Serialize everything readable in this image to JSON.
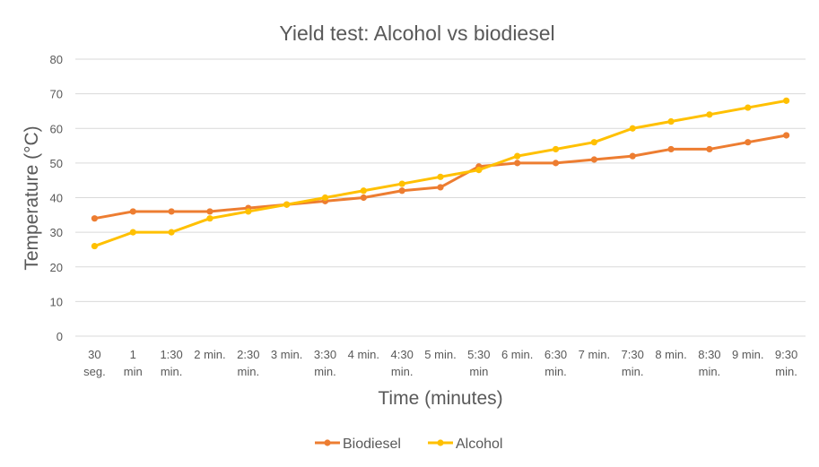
{
  "chart_data": {
    "type": "line",
    "title": "Yield test: Alcohol vs biodiesel",
    "xlabel": "Time (minutes)",
    "ylabel": "Temperature (°C)",
    "ylim": [
      0,
      80
    ],
    "yticks": [
      0,
      10,
      20,
      30,
      40,
      50,
      60,
      70,
      80
    ],
    "grid": true,
    "legend": "bottom",
    "categories": [
      [
        "30",
        "seg."
      ],
      [
        "1",
        "min"
      ],
      [
        "1:30",
        "min."
      ],
      [
        "2 min.",
        ""
      ],
      [
        "2:30",
        "min."
      ],
      [
        "3 min.",
        ""
      ],
      [
        "3:30",
        "min."
      ],
      [
        "4 min.",
        ""
      ],
      [
        "4:30",
        "min."
      ],
      [
        "5 min.",
        ""
      ],
      [
        "5:30",
        "min"
      ],
      [
        "6 min.",
        ""
      ],
      [
        "6:30",
        "min."
      ],
      [
        "7 min.",
        ""
      ],
      [
        "7:30",
        "min."
      ],
      [
        "8 min.",
        ""
      ],
      [
        "8:30",
        "min."
      ],
      [
        "9 min.",
        ""
      ],
      [
        "9:30",
        "min."
      ]
    ],
    "series": [
      {
        "name": "Biodiesel",
        "color": "#ED7D31",
        "values": [
          34,
          36,
          36,
          36,
          37,
          38,
          39,
          40,
          42,
          43,
          49,
          50,
          50,
          51,
          52,
          54,
          54,
          56,
          58
        ]
      },
      {
        "name": "Alcohol",
        "color": "#FFC000",
        "values": [
          26,
          30,
          30,
          34,
          36,
          38,
          40,
          42,
          44,
          46,
          48,
          52,
          54,
          56,
          60,
          62,
          64,
          66,
          68
        ]
      }
    ]
  }
}
